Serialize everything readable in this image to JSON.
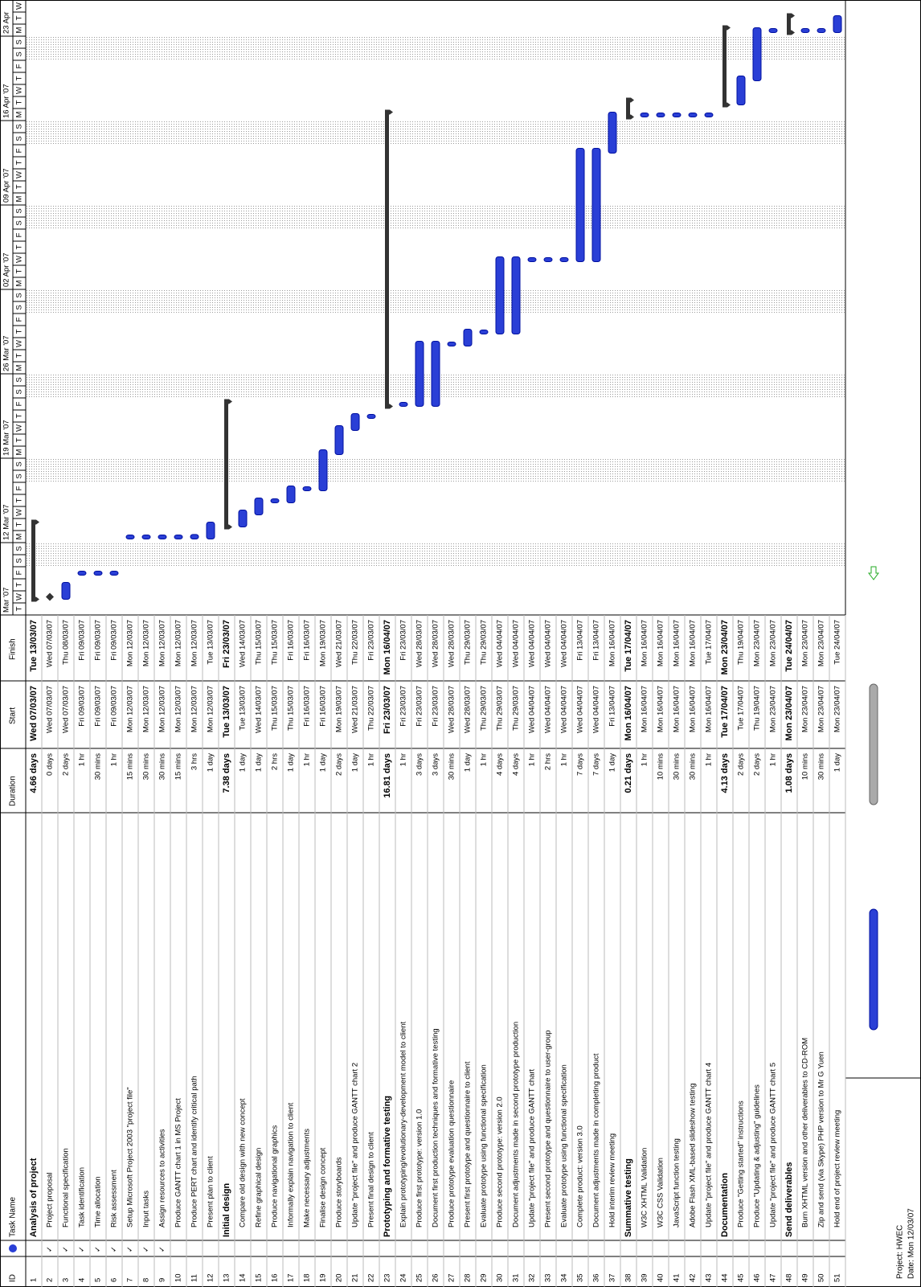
{
  "headers": {
    "id": "ID",
    "name": "Task Name",
    "duration": "Duration",
    "start": "Start",
    "finish": "Finish"
  },
  "timescale": {
    "weeks": [
      {
        "label": "Mar '07",
        "days": [
          "T",
          "W",
          "T",
          "F",
          "S",
          "S"
        ]
      },
      {
        "label": "12 Mar '07",
        "days": [
          "M",
          "T",
          "W",
          "T",
          "F",
          "S",
          "S"
        ]
      },
      {
        "label": "19 Mar '07",
        "days": [
          "M",
          "T",
          "W",
          "T",
          "F",
          "S",
          "S"
        ]
      },
      {
        "label": "26 Mar '07",
        "days": [
          "M",
          "T",
          "W",
          "T",
          "F",
          "S",
          "S"
        ]
      },
      {
        "label": "02 Apr '07",
        "days": [
          "M",
          "T",
          "W",
          "T",
          "F",
          "S",
          "S"
        ]
      },
      {
        "label": "09 Apr '07",
        "days": [
          "M",
          "T",
          "W",
          "T",
          "F",
          "S",
          "S"
        ]
      },
      {
        "label": "16 Apr '07",
        "days": [
          "M",
          "T",
          "W",
          "T",
          "F",
          "S",
          "S"
        ]
      },
      {
        "label": "23 Apr",
        "days": [
          "M",
          "T",
          "W"
        ]
      }
    ]
  },
  "rows": [
    {
      "id": "1",
      "name": "Analysis of project",
      "duration": "4.66 days",
      "start": "Wed 07/03/07",
      "finish": "Tue 13/03/07",
      "summary": true
    },
    {
      "id": "2",
      "indicator": "✓",
      "name": "Project proposal",
      "duration": "0 days",
      "start": "Wed 07/03/07",
      "finish": "Wed 07/03/07"
    },
    {
      "id": "3",
      "indicator": "✓",
      "name": "Functional specification",
      "duration": "2 days",
      "start": "Wed 07/03/07",
      "finish": "Thu 08/03/07"
    },
    {
      "id": "4",
      "indicator": "✓",
      "name": "Task identification",
      "duration": "1 hr",
      "start": "Fri 09/03/07",
      "finish": "Fri 09/03/07"
    },
    {
      "id": "5",
      "indicator": "✓",
      "name": "Time allocation",
      "duration": "30 mins",
      "start": "Fri 09/03/07",
      "finish": "Fri 09/03/07"
    },
    {
      "id": "6",
      "indicator": "✓",
      "name": "Risk assessment",
      "duration": "1 hr",
      "start": "Fri 09/03/07",
      "finish": "Fri 09/03/07"
    },
    {
      "id": "7",
      "indicator": "✓",
      "name": "Setup Microsoft Project 2003 \"project file\"",
      "duration": "15 mins",
      "start": "Mon 12/03/07",
      "finish": "Mon 12/03/07"
    },
    {
      "id": "8",
      "indicator": "✓",
      "name": "Input tasks",
      "duration": "30 mins",
      "start": "Mon 12/03/07",
      "finish": "Mon 12/03/07"
    },
    {
      "id": "9",
      "indicator": "✓",
      "name": "Assign resources to activities",
      "duration": "30 mins",
      "start": "Mon 12/03/07",
      "finish": "Mon 12/03/07"
    },
    {
      "id": "10",
      "name": "Produce GANTT chart 1 in MS Project",
      "duration": "15 mins",
      "start": "Mon 12/03/07",
      "finish": "Mon 12/03/07"
    },
    {
      "id": "11",
      "name": "Produce PERT chart and identify critical path",
      "duration": "3 hrs",
      "start": "Mon 12/03/07",
      "finish": "Mon 12/03/07"
    },
    {
      "id": "12",
      "name": "Present plan to client",
      "duration": "1 day",
      "start": "Mon 12/03/07",
      "finish": "Tue 13/03/07"
    },
    {
      "id": "13",
      "name": "Initial design",
      "duration": "7.38 days",
      "start": "Tue 13/03/07",
      "finish": "Fri 23/03/07",
      "summary": true
    },
    {
      "id": "14",
      "name": "Compare old design with new concept",
      "duration": "1 day",
      "start": "Tue 13/03/07",
      "finish": "Wed 14/03/07"
    },
    {
      "id": "15",
      "name": "Refine graphical design",
      "duration": "1 day",
      "start": "Wed 14/03/07",
      "finish": "Thu 15/03/07"
    },
    {
      "id": "16",
      "name": "Produce navigational graphics",
      "duration": "2 hrs",
      "start": "Thu 15/03/07",
      "finish": "Thu 15/03/07"
    },
    {
      "id": "17",
      "name": "Informally explain navigation to client",
      "duration": "1 day",
      "start": "Thu 15/03/07",
      "finish": "Fri 16/03/07"
    },
    {
      "id": "18",
      "name": "Make necessary adjustments",
      "duration": "1 hr",
      "start": "Fri 16/03/07",
      "finish": "Fri 16/03/07"
    },
    {
      "id": "19",
      "name": "Finalise design concept",
      "duration": "1 day",
      "start": "Fri 16/03/07",
      "finish": "Mon 19/03/07"
    },
    {
      "id": "20",
      "name": "Produce storyboards",
      "duration": "2 days",
      "start": "Mon 19/03/07",
      "finish": "Wed 21/03/07"
    },
    {
      "id": "21",
      "name": "Update \"project file\" and produce GANTT chart 2",
      "duration": "1 day",
      "start": "Wed 21/03/07",
      "finish": "Thu 22/03/07"
    },
    {
      "id": "22",
      "name": "Present final design to client",
      "duration": "1 hr",
      "start": "Thu 22/03/07",
      "finish": "Fri 23/03/07"
    },
    {
      "id": "23",
      "name": "Prototyping and formative testing",
      "duration": "16.81 days",
      "start": "Fri 23/03/07",
      "finish": "Mon 16/04/07",
      "summary": true
    },
    {
      "id": "24",
      "name": "Explain prototyping/evolutionary-development model to client",
      "duration": "1 hr",
      "start": "Fri 23/03/07",
      "finish": "Fri 23/03/07"
    },
    {
      "id": "25",
      "name": "Produce first prototype: version 1.0",
      "duration": "3 days",
      "start": "Fri 23/03/07",
      "finish": "Wed 28/03/07"
    },
    {
      "id": "26",
      "name": "Document first production techniques and formative testing",
      "duration": "3 days",
      "start": "Fri 23/03/07",
      "finish": "Wed 28/03/07"
    },
    {
      "id": "27",
      "name": "Produce prototype evaluation questionnaire",
      "duration": "30 mins",
      "start": "Wed 28/03/07",
      "finish": "Wed 28/03/07"
    },
    {
      "id": "28",
      "name": "Present first prototype and questionnaire to client",
      "duration": "1 day",
      "start": "Wed 28/03/07",
      "finish": "Thu 29/03/07"
    },
    {
      "id": "29",
      "name": "Evaluate prototype using functional specification",
      "duration": "1 hr",
      "start": "Thu 29/03/07",
      "finish": "Thu 29/03/07"
    },
    {
      "id": "30",
      "name": "Produce second prototype: version 2.0",
      "duration": "4 days",
      "start": "Thu 29/03/07",
      "finish": "Wed 04/04/07"
    },
    {
      "id": "31",
      "name": "Document adjustments made in second prototype production",
      "duration": "4 days",
      "start": "Thu 29/03/07",
      "finish": "Wed 04/04/07"
    },
    {
      "id": "32",
      "name": "Update \"project file\" and produce GANTT chart",
      "duration": "1 hr",
      "start": "Wed 04/04/07",
      "finish": "Wed 04/04/07"
    },
    {
      "id": "33",
      "name": "Present second prototype and questionnaire to user-group",
      "duration": "2 hrs",
      "start": "Wed 04/04/07",
      "finish": "Wed 04/04/07"
    },
    {
      "id": "34",
      "name": "Evaluate prototype using functional specification",
      "duration": "1 hr",
      "start": "Wed 04/04/07",
      "finish": "Wed 04/04/07"
    },
    {
      "id": "35",
      "name": "Complete product: version 3.0",
      "duration": "7 days",
      "start": "Wed 04/04/07",
      "finish": "Fri 13/04/07"
    },
    {
      "id": "36",
      "name": "Document adjustments made in completing product",
      "duration": "7 days",
      "start": "Wed 04/04/07",
      "finish": "Fri 13/04/07"
    },
    {
      "id": "37",
      "name": "Hold interim review meeting",
      "duration": "1 day",
      "start": "Fri 13/04/07",
      "finish": "Mon 16/04/07"
    },
    {
      "id": "38",
      "name": "Summative testing",
      "duration": "0.21 days",
      "start": "Mon 16/04/07",
      "finish": "Tue 17/04/07",
      "summary": true
    },
    {
      "id": "39",
      "name": "W3C XHTML Validation",
      "duration": "1 hr",
      "start": "Mon 16/04/07",
      "finish": "Mon 16/04/07"
    },
    {
      "id": "40",
      "name": "W3C CSS Validation",
      "duration": "10 mins",
      "start": "Mon 16/04/07",
      "finish": "Mon 16/04/07"
    },
    {
      "id": "41",
      "name": "JavaScript function testing",
      "duration": "30 mins",
      "start": "Mon 16/04/07",
      "finish": "Mon 16/04/07"
    },
    {
      "id": "42",
      "name": "Adobe Flash XML-based slideshow testing",
      "duration": "30 mins",
      "start": "Mon 16/04/07",
      "finish": "Mon 16/04/07"
    },
    {
      "id": "43",
      "name": "Update \"project file\" and produce GANTT chart 4",
      "duration": "1 hr",
      "start": "Mon 16/04/07",
      "finish": "Tue 17/04/07"
    },
    {
      "id": "44",
      "name": "Documentation",
      "duration": "4.13 days",
      "start": "Tue 17/04/07",
      "finish": "Mon 23/04/07",
      "summary": true
    },
    {
      "id": "45",
      "name": "Produce \"Getting started\" instructions",
      "duration": "2 days",
      "start": "Tue 17/04/07",
      "finish": "Thu 19/04/07"
    },
    {
      "id": "46",
      "name": "Produce \"Updating & adjusting\" guidelines",
      "duration": "2 days",
      "start": "Thu 19/04/07",
      "finish": "Mon 23/04/07"
    },
    {
      "id": "47",
      "name": "Update \"project file\" and produce GANTT chart 5",
      "duration": "1 hr",
      "start": "Mon 23/04/07",
      "finish": "Mon 23/04/07"
    },
    {
      "id": "48",
      "name": "Send deliverables",
      "duration": "1.08 days",
      "start": "Mon 23/04/07",
      "finish": "Tue 24/04/07",
      "summary": true
    },
    {
      "id": "49",
      "name": "Burn XHTML version and other deliverables to CD-ROM",
      "duration": "10 mins",
      "start": "Mon 23/04/07",
      "finish": "Mon 23/04/07"
    },
    {
      "id": "50",
      "name": "Zip and send (via Skype) PHP version to Mr G Yuen",
      "duration": "30 mins",
      "start": "Mon 23/04/07",
      "finish": "Mon 23/04/07"
    },
    {
      "id": "51",
      "name": "Hold end of project review meeting",
      "duration": "1 day",
      "start": "Mon 23/04/07",
      "finish": "Tue 24/04/07"
    }
  ],
  "footer": {
    "project": "Project: HWEC",
    "date": "Date: Mon 12/03/07"
  }
}
